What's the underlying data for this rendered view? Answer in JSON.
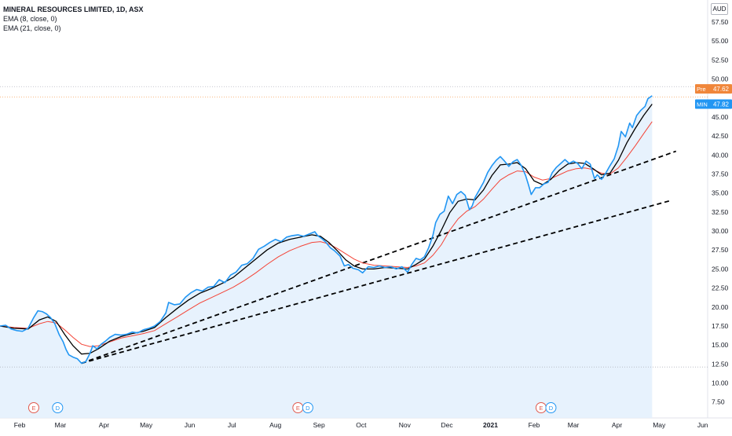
{
  "chart_data": {
    "type": "line",
    "title": "MINERAL RESOURCES LIMITED, 1D, ASX",
    "indicators": [
      "EMA (8, close, 0)",
      "EMA (21, close, 0)"
    ],
    "currency": "AUD",
    "x_ticks": [
      {
        "label": "Feb",
        "d": 14
      },
      {
        "label": "Mar",
        "d": 43
      },
      {
        "label": "Apr",
        "d": 74
      },
      {
        "label": "May",
        "d": 104
      },
      {
        "label": "Jun",
        "d": 135
      },
      {
        "label": "Jul",
        "d": 165
      },
      {
        "label": "Aug",
        "d": 196
      },
      {
        "label": "Sep",
        "d": 227
      },
      {
        "label": "Oct",
        "d": 257
      },
      {
        "label": "Nov",
        "d": 288
      },
      {
        "label": "Dec",
        "d": 318
      },
      {
        "label": "2021",
        "d": 349
      },
      {
        "label": "Feb",
        "d": 380
      },
      {
        "label": "Mar",
        "d": 408
      },
      {
        "label": "Apr",
        "d": 439
      },
      {
        "label": "May",
        "d": 469
      },
      {
        "label": "Jun",
        "d": 500
      }
    ],
    "y_ticks": [
      7.5,
      10,
      12.5,
      15,
      17.5,
      20,
      22.5,
      25,
      27.5,
      30,
      32.5,
      35,
      37.5,
      40,
      42.5,
      45,
      50,
      52.5,
      55,
      57.5
    ],
    "ylim": [
      5.4,
      60.4
    ],
    "xlim": [
      0,
      524
    ],
    "price": [
      [
        0,
        17.5
      ],
      [
        4,
        17.6
      ],
      [
        8,
        17.1
      ],
      [
        12,
        16.9
      ],
      [
        16,
        16.8
      ],
      [
        20,
        17.2
      ],
      [
        24,
        18.6
      ],
      [
        27,
        19.5
      ],
      [
        30,
        19.4
      ],
      [
        33,
        19.1
      ],
      [
        36,
        18.6
      ],
      [
        39,
        17.8
      ],
      [
        42,
        16.4
      ],
      [
        45,
        15.4
      ],
      [
        47,
        14.4
      ],
      [
        49,
        13.7
      ],
      [
        52,
        13.4
      ],
      [
        55,
        13.2
      ],
      [
        58,
        12.6
      ],
      [
        61,
        12.8
      ],
      [
        64,
        13.9
      ],
      [
        66,
        14.9
      ],
      [
        69,
        14.5
      ],
      [
        72,
        15.1
      ],
      [
        75,
        15.5
      ],
      [
        78,
        16.0
      ],
      [
        82,
        16.4
      ],
      [
        86,
        16.3
      ],
      [
        90,
        16.4
      ],
      [
        94,
        16.7
      ],
      [
        98,
        16.6
      ],
      [
        102,
        17.0
      ],
      [
        106,
        17.2
      ],
      [
        110,
        17.5
      ],
      [
        114,
        18.1
      ],
      [
        118,
        19.2
      ],
      [
        120,
        20.6
      ],
      [
        124,
        20.3
      ],
      [
        128,
        20.4
      ],
      [
        132,
        21.3
      ],
      [
        136,
        21.9
      ],
      [
        140,
        22.3
      ],
      [
        144,
        22.1
      ],
      [
        148,
        22.6
      ],
      [
        152,
        22.7
      ],
      [
        156,
        23.6
      ],
      [
        160,
        23.2
      ],
      [
        164,
        24.2
      ],
      [
        168,
        24.6
      ],
      [
        172,
        25.5
      ],
      [
        176,
        25.7
      ],
      [
        180,
        26.4
      ],
      [
        184,
        27.6
      ],
      [
        188,
        28.0
      ],
      [
        192,
        28.5
      ],
      [
        196,
        28.9
      ],
      [
        200,
        28.6
      ],
      [
        204,
        29.2
      ],
      [
        208,
        29.4
      ],
      [
        212,
        29.5
      ],
      [
        216,
        29.3
      ],
      [
        220,
        29.6
      ],
      [
        224,
        29.9
      ],
      [
        226,
        29.4
      ],
      [
        229,
        29.0
      ],
      [
        232,
        28.5
      ],
      [
        235,
        27.8
      ],
      [
        238,
        27.4
      ],
      [
        242,
        26.7
      ],
      [
        245,
        25.4
      ],
      [
        248,
        25.6
      ],
      [
        251,
        25.1
      ],
      [
        255,
        24.9
      ],
      [
        258,
        24.5
      ],
      [
        262,
        25.3
      ],
      [
        266,
        25.2
      ],
      [
        270,
        25.4
      ],
      [
        274,
        25.2
      ],
      [
        278,
        25.3
      ],
      [
        282,
        25.0
      ],
      [
        286,
        25.3
      ],
      [
        290,
        24.6
      ],
      [
        293,
        25.6
      ],
      [
        296,
        26.4
      ],
      [
        299,
        26.2
      ],
      [
        302,
        26.6
      ],
      [
        305,
        27.8
      ],
      [
        308,
        29.4
      ],
      [
        310,
        31.1
      ],
      [
        313,
        32.2
      ],
      [
        316,
        32.6
      ],
      [
        319,
        34.6
      ],
      [
        322,
        33.6
      ],
      [
        325,
        34.8
      ],
      [
        328,
        35.2
      ],
      [
        331,
        34.7
      ],
      [
        334,
        32.8
      ],
      [
        336,
        33.3
      ],
      [
        338,
        34.4
      ],
      [
        341,
        35.4
      ],
      [
        344,
        36.4
      ],
      [
        347,
        37.7
      ],
      [
        350,
        38.6
      ],
      [
        353,
        39.3
      ],
      [
        356,
        39.8
      ],
      [
        359,
        39.2
      ],
      [
        362,
        38.5
      ],
      [
        365,
        39.1
      ],
      [
        368,
        39.4
      ],
      [
        371,
        38.6
      ],
      [
        374,
        37.3
      ],
      [
        376,
        36.1
      ],
      [
        378,
        34.8
      ],
      [
        381,
        35.7
      ],
      [
        384,
        35.7
      ],
      [
        387,
        36.2
      ],
      [
        390,
        36.4
      ],
      [
        393,
        37.7
      ],
      [
        396,
        38.4
      ],
      [
        399,
        38.9
      ],
      [
        402,
        39.4
      ],
      [
        405,
        38.9
      ],
      [
        408,
        39.2
      ],
      [
        411,
        38.9
      ],
      [
        414,
        38.2
      ],
      [
        417,
        39.2
      ],
      [
        420,
        38.8
      ],
      [
        423,
        36.9
      ],
      [
        425,
        37.4
      ],
      [
        428,
        36.8
      ],
      [
        431,
        37.6
      ],
      [
        434,
        38.6
      ],
      [
        437,
        39.5
      ],
      [
        440,
        41.2
      ],
      [
        442,
        43.1
      ],
      [
        445,
        42.4
      ],
      [
        448,
        44.2
      ],
      [
        450,
        43.6
      ],
      [
        453,
        45.2
      ],
      [
        456,
        45.9
      ],
      [
        459,
        46.4
      ],
      [
        461,
        47.4
      ],
      [
        464,
        47.8
      ]
    ],
    "ema8": [
      [
        0,
        17.5
      ],
      [
        10,
        17.2
      ],
      [
        20,
        17.1
      ],
      [
        28,
        18.3
      ],
      [
        34,
        18.7
      ],
      [
        40,
        18.1
      ],
      [
        46,
        16.4
      ],
      [
        52,
        14.9
      ],
      [
        58,
        13.8
      ],
      [
        64,
        13.9
      ],
      [
        70,
        14.5
      ],
      [
        78,
        15.5
      ],
      [
        86,
        16.1
      ],
      [
        94,
        16.5
      ],
      [
        102,
        16.8
      ],
      [
        110,
        17.3
      ],
      [
        118,
        18.6
      ],
      [
        126,
        19.8
      ],
      [
        134,
        20.9
      ],
      [
        142,
        21.8
      ],
      [
        150,
        22.4
      ],
      [
        158,
        23.1
      ],
      [
        166,
        23.9
      ],
      [
        174,
        25.1
      ],
      [
        182,
        26.3
      ],
      [
        190,
        27.5
      ],
      [
        198,
        28.4
      ],
      [
        206,
        28.9
      ],
      [
        214,
        29.2
      ],
      [
        222,
        29.5
      ],
      [
        228,
        29.3
      ],
      [
        234,
        28.5
      ],
      [
        240,
        27.4
      ],
      [
        246,
        26.2
      ],
      [
        252,
        25.4
      ],
      [
        258,
        25.0
      ],
      [
        266,
        25.0
      ],
      [
        274,
        25.2
      ],
      [
        282,
        25.1
      ],
      [
        290,
        25.0
      ],
      [
        296,
        25.6
      ],
      [
        302,
        26.3
      ],
      [
        308,
        28.0
      ],
      [
        314,
        30.1
      ],
      [
        320,
        32.4
      ],
      [
        326,
        33.9
      ],
      [
        332,
        34.2
      ],
      [
        338,
        34.1
      ],
      [
        344,
        35.4
      ],
      [
        350,
        37.3
      ],
      [
        356,
        38.7
      ],
      [
        362,
        38.8
      ],
      [
        368,
        39.0
      ],
      [
        374,
        38.2
      ],
      [
        380,
        36.6
      ],
      [
        386,
        36.1
      ],
      [
        392,
        36.8
      ],
      [
        398,
        38.0
      ],
      [
        404,
        38.8
      ],
      [
        410,
        39.0
      ],
      [
        416,
        38.9
      ],
      [
        422,
        38.2
      ],
      [
        428,
        37.4
      ],
      [
        434,
        37.6
      ],
      [
        440,
        39.3
      ],
      [
        446,
        41.6
      ],
      [
        452,
        43.5
      ],
      [
        458,
        45.2
      ],
      [
        464,
        46.7
      ]
    ],
    "ema21": [
      [
        0,
        17.5
      ],
      [
        10,
        17.3
      ],
      [
        20,
        17.2
      ],
      [
        28,
        17.8
      ],
      [
        34,
        18.1
      ],
      [
        40,
        17.9
      ],
      [
        46,
        17.0
      ],
      [
        52,
        16.0
      ],
      [
        58,
        15.1
      ],
      [
        64,
        14.8
      ],
      [
        70,
        14.9
      ],
      [
        78,
        15.4
      ],
      [
        86,
        15.9
      ],
      [
        94,
        16.2
      ],
      [
        102,
        16.5
      ],
      [
        110,
        16.9
      ],
      [
        118,
        17.8
      ],
      [
        126,
        18.7
      ],
      [
        134,
        19.6
      ],
      [
        142,
        20.5
      ],
      [
        150,
        21.2
      ],
      [
        158,
        21.9
      ],
      [
        166,
        22.6
      ],
      [
        174,
        23.5
      ],
      [
        182,
        24.5
      ],
      [
        190,
        25.6
      ],
      [
        198,
        26.6
      ],
      [
        206,
        27.4
      ],
      [
        214,
        28.0
      ],
      [
        222,
        28.5
      ],
      [
        228,
        28.6
      ],
      [
        234,
        28.3
      ],
      [
        240,
        27.7
      ],
      [
        246,
        27.0
      ],
      [
        252,
        26.3
      ],
      [
        258,
        25.8
      ],
      [
        266,
        25.5
      ],
      [
        274,
        25.4
      ],
      [
        282,
        25.3
      ],
      [
        290,
        25.2
      ],
      [
        296,
        25.4
      ],
      [
        302,
        25.8
      ],
      [
        308,
        26.8
      ],
      [
        314,
        28.2
      ],
      [
        320,
        30.1
      ],
      [
        326,
        31.6
      ],
      [
        332,
        32.6
      ],
      [
        338,
        33.2
      ],
      [
        344,
        34.2
      ],
      [
        350,
        35.5
      ],
      [
        356,
        36.7
      ],
      [
        362,
        37.4
      ],
      [
        368,
        37.9
      ],
      [
        374,
        37.8
      ],
      [
        380,
        37.1
      ],
      [
        386,
        36.7
      ],
      [
        392,
        36.9
      ],
      [
        398,
        37.4
      ],
      [
        404,
        37.9
      ],
      [
        410,
        38.2
      ],
      [
        416,
        38.3
      ],
      [
        422,
        38.1
      ],
      [
        428,
        37.6
      ],
      [
        434,
        37.5
      ],
      [
        440,
        38.3
      ],
      [
        446,
        39.7
      ],
      [
        452,
        41.2
      ],
      [
        458,
        42.8
      ],
      [
        464,
        44.4
      ]
    ],
    "trendlines": [
      [
        [
          58,
          12.6
        ],
        [
          481,
          40.5
        ]
      ],
      [
        [
          58,
          12.6
        ],
        [
          477,
          34.0
        ]
      ]
    ],
    "reference_lines": [
      {
        "value": 12.1,
        "color": "#b2b5be"
      },
      {
        "value": 49.0,
        "color": "#b2b5be"
      },
      {
        "value": 47.62,
        "color": "#f7a35c"
      }
    ],
    "price_labels": [
      {
        "name": "Pre",
        "value": "47.62",
        "y": 48.7,
        "color": "#f0863a"
      },
      {
        "name": "MIN",
        "value": "47.82",
        "y": 46.7,
        "color": "#2196f3"
      }
    ],
    "events": [
      {
        "label": "E",
        "d": 24,
        "type": "earnings"
      },
      {
        "label": "D",
        "d": 41,
        "type": "dividend"
      },
      {
        "label": "E",
        "d": 212,
        "type": "earnings"
      },
      {
        "label": "D",
        "d": 219,
        "type": "dividend"
      },
      {
        "label": "E",
        "d": 385,
        "type": "earnings"
      },
      {
        "label": "D",
        "d": 392,
        "type": "dividend"
      }
    ],
    "colors": {
      "price": "#2196f3",
      "ema8": "#000000",
      "ema21": "#f44336",
      "area_fill": "#e3f0fd",
      "earnings": "#e05a4e",
      "dividend": "#2196f3"
    }
  }
}
